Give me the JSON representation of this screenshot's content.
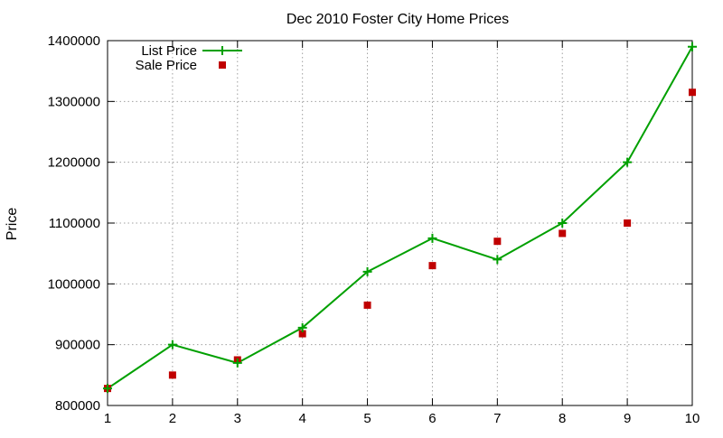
{
  "chart_data": {
    "type": "line",
    "title": "Dec 2010 Foster City Home Prices",
    "xlabel": "",
    "ylabel": "Price",
    "x": [
      1,
      2,
      3,
      4,
      5,
      6,
      7,
      8,
      9,
      10
    ],
    "xlim": [
      1,
      10
    ],
    "ylim": [
      800000,
      1400000
    ],
    "x_ticks": [
      "1",
      "2",
      "3",
      "4",
      "5",
      "6",
      "7",
      "8",
      "9",
      "10"
    ],
    "y_ticks": [
      "800000",
      "900000",
      "1000000",
      "1100000",
      "1200000",
      "1300000",
      "1400000"
    ],
    "y_tick_values": [
      800000,
      900000,
      1000000,
      1100000,
      1200000,
      1300000,
      1400000
    ],
    "grid": true,
    "legend_position": "top-left",
    "series": [
      {
        "name": "List Price",
        "style": "line-with-plus-markers",
        "color": "#00a000",
        "values": [
          828000,
          900000,
          870000,
          928000,
          1020000,
          1075000,
          1040000,
          1100000,
          1200000,
          1390000
        ]
      },
      {
        "name": "Sale Price",
        "style": "square-points",
        "color": "#c00000",
        "values": [
          828000,
          850000,
          875000,
          918000,
          965000,
          1030000,
          1070000,
          1083000,
          1100000,
          1315000
        ]
      }
    ]
  }
}
